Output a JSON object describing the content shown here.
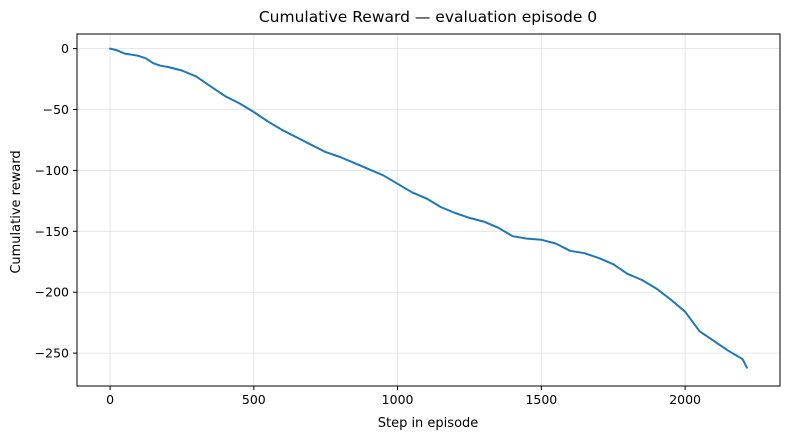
{
  "chart_data": {
    "type": "line",
    "title": "Cumulative Reward — evaluation episode 0",
    "xlabel": "Step in episode",
    "ylabel": "Cumulative reward",
    "xlim": [
      -115,
      2330
    ],
    "ylim": [
      -277,
      12
    ],
    "xticks": [
      0,
      500,
      1000,
      1500,
      2000
    ],
    "yticks": [
      0,
      -50,
      -100,
      -150,
      -200,
      -250
    ],
    "grid": true,
    "colors": {
      "line": "#1f77b4",
      "grid": "#e0e0e0",
      "axis": "#000000"
    },
    "series": [
      {
        "name": "cumulative reward",
        "x": [
          0,
          25,
          50,
          75,
          100,
          125,
          150,
          175,
          200,
          250,
          300,
          350,
          400,
          450,
          500,
          550,
          600,
          650,
          700,
          750,
          800,
          850,
          900,
          950,
          1000,
          1050,
          1100,
          1150,
          1200,
          1250,
          1300,
          1350,
          1400,
          1450,
          1500,
          1550,
          1600,
          1650,
          1700,
          1750,
          1800,
          1850,
          1900,
          1950,
          2000,
          2050,
          2100,
          2150,
          2200,
          2215
        ],
        "y": [
          0,
          -1.5,
          -4,
          -5,
          -6,
          -8,
          -12,
          -14,
          -15,
          -18,
          -23,
          -31,
          -39,
          -45,
          -52,
          -60,
          -67,
          -73,
          -79,
          -85,
          -89,
          -94,
          -99,
          -104,
          -111,
          -118,
          -123,
          -130,
          -135,
          -139,
          -142,
          -147,
          -154,
          -156,
          -157,
          -160,
          -166,
          -168,
          -172,
          -177,
          -185,
          -190,
          -197,
          -206,
          -216,
          -232,
          -240,
          -248,
          -255,
          -262
        ]
      }
    ]
  }
}
